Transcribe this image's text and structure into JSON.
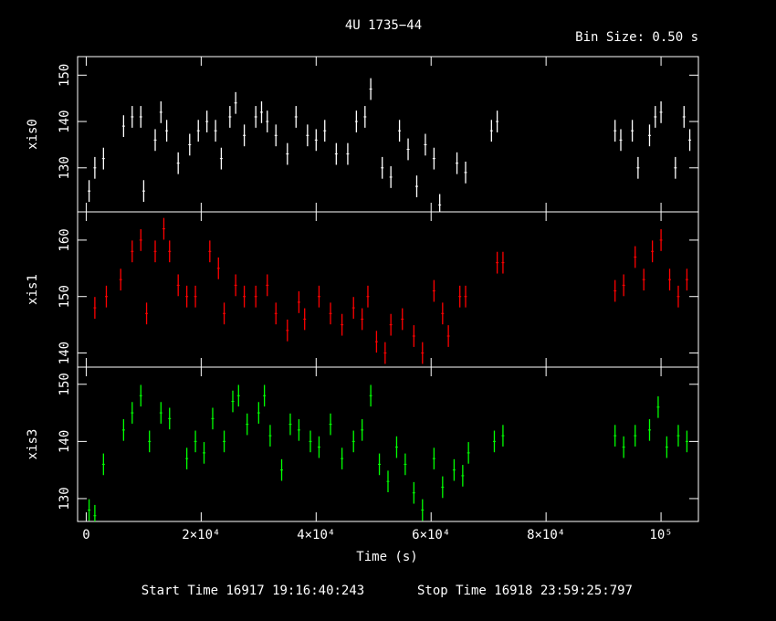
{
  "title": "4U 1735−44",
  "bin_size": "Bin Size: 0.50 s",
  "xlabel": "Time (s)",
  "footer": {
    "start": "Start Time 16917 19:16:40:243",
    "stop": "Stop Time 16918 23:59:25:797"
  },
  "chart_data": {
    "type": "scatter",
    "title": "4U 1735−44",
    "xlabel": "Time (s)",
    "xlim": [
      -1500,
      106500
    ],
    "x_ticks": [
      {
        "value": 0,
        "label": "0"
      },
      {
        "value": 20000,
        "label": "2×10⁴"
      },
      {
        "value": 40000,
        "label": "4×10⁴"
      },
      {
        "value": 60000,
        "label": "6×10⁴"
      },
      {
        "value": 80000,
        "label": "8×10⁴"
      },
      {
        "value": 100000,
        "label": "10⁵"
      }
    ],
    "panels": [
      {
        "name": "xis0",
        "ylabel": "xis0",
        "color": "#ffffff",
        "ylim": [
          120.5,
          154
        ],
        "yticks": [
          130,
          140,
          150
        ],
        "points": [
          [
            500,
            125
          ],
          [
            1500,
            130
          ],
          [
            3000,
            132
          ],
          [
            6500,
            139
          ],
          [
            8000,
            141
          ],
          [
            9500,
            141
          ],
          [
            10000,
            125
          ],
          [
            12000,
            136
          ],
          [
            13000,
            142
          ],
          [
            14000,
            138
          ],
          [
            16000,
            131
          ],
          [
            18000,
            135
          ],
          [
            19500,
            138
          ],
          [
            21000,
            140
          ],
          [
            22500,
            138
          ],
          [
            23500,
            132
          ],
          [
            25000,
            141
          ],
          [
            26000,
            144
          ],
          [
            27500,
            137
          ],
          [
            29500,
            141
          ],
          [
            30500,
            142
          ],
          [
            31500,
            140
          ],
          [
            33000,
            137
          ],
          [
            35000,
            133
          ],
          [
            36500,
            141
          ],
          [
            38500,
            137
          ],
          [
            40000,
            136
          ],
          [
            41500,
            138
          ],
          [
            43500,
            133
          ],
          [
            45500,
            133
          ],
          [
            47000,
            140
          ],
          [
            48500,
            141
          ],
          [
            49500,
            147
          ],
          [
            51500,
            130
          ],
          [
            53000,
            128
          ],
          [
            54500,
            138
          ],
          [
            56000,
            134
          ],
          [
            57500,
            126
          ],
          [
            59000,
            135
          ],
          [
            60500,
            132
          ],
          [
            61500,
            122
          ],
          [
            64500,
            131
          ],
          [
            66000,
            129
          ],
          [
            70500,
            138
          ],
          [
            71500,
            140
          ],
          [
            92000,
            138
          ],
          [
            93000,
            136
          ],
          [
            95000,
            138
          ],
          [
            96000,
            130
          ],
          [
            98000,
            137
          ],
          [
            99000,
            141
          ],
          [
            100000,
            142
          ],
          [
            102500,
            130
          ],
          [
            104000,
            141
          ],
          [
            105000,
            136
          ]
        ]
      },
      {
        "name": "xis1",
        "ylabel": "xis1",
        "color": "#ff0000",
        "ylim": [
          137.5,
          165
        ],
        "yticks": [
          140,
          150,
          160
        ],
        "points": [
          [
            1500,
            148
          ],
          [
            3500,
            150
          ],
          [
            6000,
            153
          ],
          [
            8000,
            158
          ],
          [
            9500,
            160
          ],
          [
            10500,
            147
          ],
          [
            12000,
            158
          ],
          [
            13500,
            162
          ],
          [
            14500,
            158
          ],
          [
            16000,
            152
          ],
          [
            17500,
            150
          ],
          [
            19000,
            150
          ],
          [
            21500,
            158
          ],
          [
            23000,
            155
          ],
          [
            24000,
            147
          ],
          [
            26000,
            152
          ],
          [
            27500,
            150
          ],
          [
            29500,
            150
          ],
          [
            31500,
            152
          ],
          [
            33000,
            147
          ],
          [
            35000,
            144
          ],
          [
            37000,
            149
          ],
          [
            38000,
            146
          ],
          [
            40500,
            150
          ],
          [
            42500,
            147
          ],
          [
            44500,
            145
          ],
          [
            46500,
            148
          ],
          [
            48000,
            146
          ],
          [
            49000,
            150
          ],
          [
            50500,
            142
          ],
          [
            52000,
            140
          ],
          [
            53000,
            145
          ],
          [
            55000,
            146
          ],
          [
            57000,
            143
          ],
          [
            58500,
            140
          ],
          [
            60500,
            151
          ],
          [
            62000,
            147
          ],
          [
            63000,
            143
          ],
          [
            65000,
            150
          ],
          [
            66000,
            150
          ],
          [
            71500,
            156
          ],
          [
            72500,
            156
          ],
          [
            92000,
            151
          ],
          [
            93500,
            152
          ],
          [
            95500,
            157
          ],
          [
            97000,
            153
          ],
          [
            98500,
            158
          ],
          [
            100000,
            160
          ],
          [
            101500,
            153
          ],
          [
            103000,
            150
          ],
          [
            104500,
            153
          ]
        ]
      },
      {
        "name": "xis3",
        "ylabel": "xis3",
        "color": "#00ff00",
        "ylim": [
          126,
          153
        ],
        "yticks": [
          130,
          140,
          150
        ],
        "points": [
          [
            500,
            128
          ],
          [
            1500,
            127
          ],
          [
            3000,
            136
          ],
          [
            6500,
            142
          ],
          [
            8000,
            145
          ],
          [
            9500,
            148
          ],
          [
            11000,
            140
          ],
          [
            13000,
            145
          ],
          [
            14500,
            144
          ],
          [
            17500,
            137
          ],
          [
            19000,
            140
          ],
          [
            20500,
            138
          ],
          [
            22000,
            144
          ],
          [
            24000,
            140
          ],
          [
            25500,
            147
          ],
          [
            26500,
            148
          ],
          [
            28000,
            143
          ],
          [
            30000,
            145
          ],
          [
            31000,
            148
          ],
          [
            32000,
            141
          ],
          [
            34000,
            135
          ],
          [
            35500,
            143
          ],
          [
            37000,
            142
          ],
          [
            39000,
            140
          ],
          [
            40500,
            139
          ],
          [
            42500,
            143
          ],
          [
            44500,
            137
          ],
          [
            46500,
            140
          ],
          [
            48000,
            142
          ],
          [
            49500,
            148
          ],
          [
            51000,
            136
          ],
          [
            52500,
            133
          ],
          [
            54000,
            139
          ],
          [
            55500,
            136
          ],
          [
            57000,
            131
          ],
          [
            58500,
            128
          ],
          [
            60500,
            137
          ],
          [
            62000,
            132
          ],
          [
            64000,
            135
          ],
          [
            65500,
            134
          ],
          [
            66500,
            138
          ],
          [
            71000,
            140
          ],
          [
            72500,
            141
          ],
          [
            92000,
            141
          ],
          [
            93500,
            139
          ],
          [
            95500,
            141
          ],
          [
            98000,
            142
          ],
          [
            99500,
            146
          ],
          [
            101000,
            139
          ],
          [
            103000,
            141
          ],
          [
            104500,
            140
          ]
        ]
      }
    ]
  }
}
